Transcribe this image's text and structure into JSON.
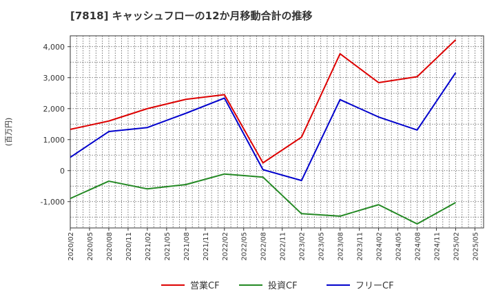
{
  "chart_data": {
    "type": "line",
    "title": "[7818]  キャッシュフローの12か月移動合計の推移",
    "ylabel": "(百万円)",
    "xlabel": "",
    "ylim": [
      -1850,
      4350
    ],
    "y_ticks": [
      -1000,
      0,
      1000,
      2000,
      3000,
      4000
    ],
    "y_tick_labels": [
      "-1,000",
      "0",
      "1,000",
      "2,000",
      "3,000",
      "4,000"
    ],
    "x_tick_labels": [
      "2020/02",
      "2020/05",
      "2020/08",
      "2020/11",
      "2021/02",
      "2021/05",
      "2021/08",
      "2021/11",
      "2022/02",
      "2022/05",
      "2022/08",
      "2022/11",
      "2023/02",
      "2023/05",
      "2023/08",
      "2023/11",
      "2024/02",
      "2024/05",
      "2024/08",
      "2024/11",
      "2025/02",
      "2025/05"
    ],
    "grid": true,
    "legend_position": "bottom",
    "series": [
      {
        "name": "営業CF",
        "color": "#dd0000",
        "points": [
          [
            "2020/02",
            1330
          ],
          [
            "2020/08",
            1600
          ],
          [
            "2021/02",
            2000
          ],
          [
            "2021/08",
            2300
          ],
          [
            "2022/02",
            2450
          ],
          [
            "2022/08",
            250
          ],
          [
            "2023/02",
            1080
          ],
          [
            "2023/08",
            3770
          ],
          [
            "2024/02",
            2840
          ],
          [
            "2024/08",
            3030
          ],
          [
            "2025/02",
            4220
          ]
        ]
      },
      {
        "name": "投資CF",
        "color": "#228822",
        "points": [
          [
            "2020/02",
            -900
          ],
          [
            "2020/08",
            -340
          ],
          [
            "2021/02",
            -590
          ],
          [
            "2021/08",
            -450
          ],
          [
            "2022/02",
            -110
          ],
          [
            "2022/08",
            -210
          ],
          [
            "2023/02",
            -1390
          ],
          [
            "2023/08",
            -1470
          ],
          [
            "2024/02",
            -1100
          ],
          [
            "2024/08",
            -1720
          ],
          [
            "2025/02",
            -1030
          ]
        ]
      },
      {
        "name": "フリーCF",
        "color": "#0000cc",
        "points": [
          [
            "2020/02",
            430
          ],
          [
            "2020/08",
            1260
          ],
          [
            "2021/02",
            1390
          ],
          [
            "2021/08",
            1850
          ],
          [
            "2022/02",
            2340
          ],
          [
            "2022/08",
            30
          ],
          [
            "2023/02",
            -320
          ],
          [
            "2023/08",
            2290
          ],
          [
            "2024/02",
            1730
          ],
          [
            "2024/08",
            1310
          ],
          [
            "2025/02",
            3160
          ]
        ]
      }
    ]
  }
}
